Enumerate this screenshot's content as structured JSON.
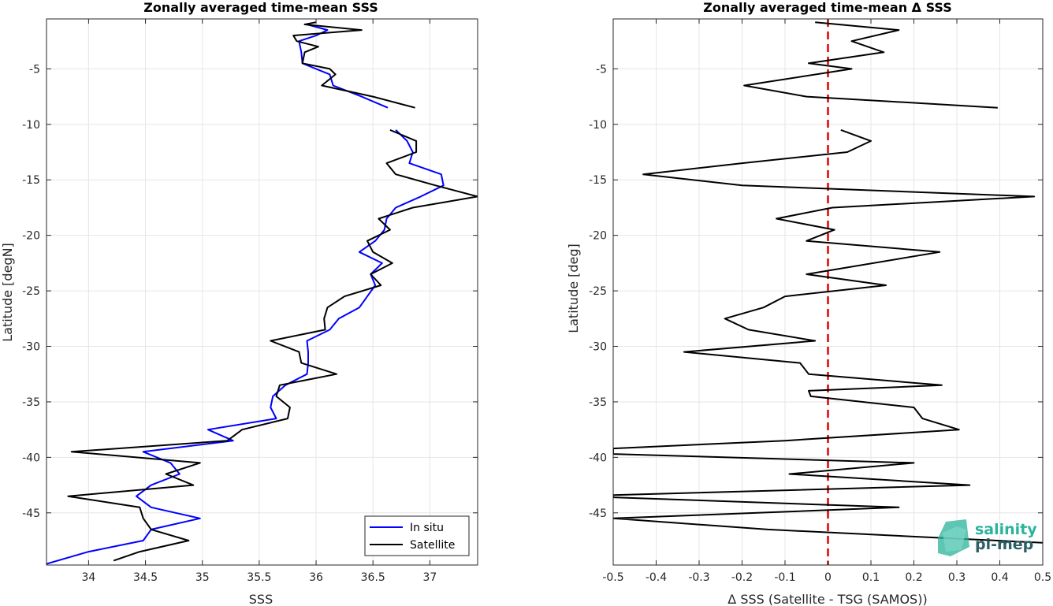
{
  "chart_data": [
    {
      "type": "line",
      "title": "Zonally averaged time-mean SSS",
      "xlabel": "SSS",
      "ylabel": "Latitude [degN]",
      "xlim": [
        33.63,
        37.42
      ],
      "ylim": [
        -49.7,
        -0.5
      ],
      "xticks": [
        34,
        34.5,
        35,
        35.5,
        36,
        36.5,
        37
      ],
      "xtick_labels": [
        "34",
        "34.5",
        "35",
        "35.5",
        "36",
        "36.5",
        "37"
      ],
      "yticks": [
        -45,
        -40,
        -35,
        -30,
        -25,
        -20,
        -15,
        -10,
        -5
      ],
      "ytick_labels": [
        "-45",
        "-40",
        "-35",
        "-30",
        "-25",
        "-20",
        "-15",
        "-10",
        "-5"
      ],
      "grid": true,
      "legend_position": "bottom-right",
      "series": [
        {
          "name": "In situ",
          "color": "#0000ff",
          "segments": [
            [
              [
                35.92,
                -1.0
              ],
              [
                36.1,
                -1.5
              ],
              [
                36.0,
                -2.0
              ],
              [
                35.85,
                -2.5
              ],
              [
                35.87,
                -3.5
              ],
              [
                35.88,
                -4.5
              ],
              [
                36.0,
                -5.0
              ],
              [
                36.12,
                -5.5
              ],
              [
                36.15,
                -6.5
              ],
              [
                36.4,
                -7.5
              ],
              [
                36.63,
                -8.5
              ]
            ],
            [
              [
                36.7,
                -10.5
              ],
              [
                36.8,
                -11.5
              ],
              [
                36.85,
                -12.5
              ],
              [
                36.82,
                -13.5
              ],
              [
                37.1,
                -14.5
              ],
              [
                37.12,
                -15.5
              ],
              [
                36.92,
                -16.5
              ],
              [
                36.7,
                -17.5
              ],
              [
                36.62,
                -18.5
              ],
              [
                36.6,
                -19.5
              ],
              [
                36.52,
                -20.5
              ],
              [
                36.38,
                -21.5
              ],
              [
                36.58,
                -22.5
              ],
              [
                36.48,
                -23.5
              ],
              [
                36.52,
                -24.5
              ],
              [
                36.45,
                -25.5
              ],
              [
                36.38,
                -26.5
              ],
              [
                36.2,
                -27.5
              ],
              [
                36.12,
                -28.5
              ],
              [
                35.92,
                -29.5
              ],
              [
                35.93,
                -30.5
              ],
              [
                35.93,
                -31.5
              ],
              [
                35.92,
                -32.5
              ],
              [
                35.73,
                -33.5
              ],
              [
                35.62,
                -34.5
              ],
              [
                35.6,
                -35.5
              ],
              [
                35.65,
                -36.5
              ],
              [
                35.05,
                -37.5
              ],
              [
                35.27,
                -38.5
              ],
              [
                34.48,
                -39.5
              ],
              [
                34.72,
                -40.5
              ],
              [
                34.8,
                -41.5
              ],
              [
                34.55,
                -42.5
              ],
              [
                34.42,
                -43.5
              ],
              [
                34.55,
                -44.5
              ],
              [
                34.98,
                -45.5
              ],
              [
                34.55,
                -46.5
              ],
              [
                34.48,
                -47.5
              ],
              [
                34.0,
                -48.5
              ],
              [
                33.63,
                -49.6
              ]
            ]
          ]
        },
        {
          "name": "Satellite",
          "color": "#000000",
          "segments": [
            [
              [
                36.0,
                -0.8
              ],
              [
                35.9,
                -1.0
              ],
              [
                36.4,
                -1.5
              ],
              [
                35.8,
                -2.0
              ],
              [
                35.83,
                -2.5
              ],
              [
                36.02,
                -3.0
              ],
              [
                35.9,
                -3.5
              ],
              [
                35.88,
                -4.5
              ],
              [
                36.12,
                -5.0
              ],
              [
                36.17,
                -5.5
              ],
              [
                36.05,
                -6.5
              ],
              [
                36.5,
                -7.5
              ],
              [
                36.87,
                -8.5
              ]
            ],
            [
              [
                36.65,
                -10.5
              ],
              [
                36.88,
                -11.5
              ],
              [
                36.88,
                -12.5
              ],
              [
                36.62,
                -13.5
              ],
              [
                36.7,
                -14.5
              ],
              [
                37.05,
                -15.5
              ],
              [
                37.42,
                -16.5
              ],
              [
                36.85,
                -17.5
              ],
              [
                36.55,
                -18.5
              ],
              [
                36.65,
                -19.5
              ],
              [
                36.45,
                -20.5
              ],
              [
                36.5,
                -21.5
              ],
              [
                36.67,
                -22.5
              ],
              [
                36.48,
                -23.5
              ],
              [
                36.57,
                -24.5
              ],
              [
                36.25,
                -25.5
              ],
              [
                36.1,
                -26.5
              ],
              [
                36.07,
                -27.5
              ],
              [
                36.08,
                -28.5
              ],
              [
                35.6,
                -29.5
              ],
              [
                35.85,
                -30.5
              ],
              [
                35.87,
                -31.5
              ],
              [
                36.18,
                -32.5
              ],
              [
                35.68,
                -33.5
              ],
              [
                35.65,
                -34.5
              ],
              [
                35.77,
                -35.5
              ],
              [
                35.75,
                -36.5
              ],
              [
                35.35,
                -37.5
              ],
              [
                35.22,
                -38.5
              ],
              [
                33.85,
                -39.5
              ],
              [
                34.98,
                -40.5
              ],
              [
                34.68,
                -41.5
              ],
              [
                34.92,
                -42.5
              ],
              [
                33.82,
                -43.5
              ],
              [
                34.45,
                -44.5
              ],
              [
                34.48,
                -45.5
              ],
              [
                34.55,
                -46.5
              ],
              [
                34.88,
                -47.5
              ],
              [
                34.45,
                -48.5
              ],
              [
                34.22,
                -49.3
              ]
            ]
          ]
        }
      ]
    },
    {
      "type": "line",
      "title": "Zonally averaged time-mean Δ SSS",
      "xlabel": "Δ SSS (Satellite - TSG (SAMOS))",
      "ylabel": "Latitude [deg]",
      "xlim": [
        -0.5,
        0.5
      ],
      "ylim": [
        -49.7,
        -0.5
      ],
      "xticks": [
        -0.5,
        -0.4,
        -0.3,
        -0.2,
        -0.1,
        0,
        0.1,
        0.2,
        0.3,
        0.4,
        0.5
      ],
      "xtick_labels": [
        "-0.5",
        "-0.4",
        "-0.3",
        "-0.2",
        "-0.1",
        "0",
        "0.1",
        "0.2",
        "0.3",
        "0.4",
        "0.5"
      ],
      "yticks": [
        -45,
        -40,
        -35,
        -30,
        -25,
        -20,
        -15,
        -10,
        -5
      ],
      "ytick_labels": [
        "-45",
        "-40",
        "-35",
        "-30",
        "-25",
        "-20",
        "-15",
        "-10",
        "-5"
      ],
      "grid": true,
      "reference_line": {
        "x": 0,
        "color": "#e00000",
        "style": "dashed"
      },
      "series": [
        {
          "color": "#000000",
          "segments": [
            [
              [
                -0.03,
                -0.8
              ],
              [
                0.165,
                -1.5
              ],
              [
                0.055,
                -2.5
              ],
              [
                0.13,
                -3.5
              ],
              [
                -0.045,
                -4.5
              ],
              [
                0.055,
                -5.0
              ],
              [
                -0.195,
                -6.5
              ],
              [
                -0.05,
                -7.5
              ],
              [
                0.395,
                -8.5
              ]
            ],
            [
              [
                0.03,
                -10.5
              ],
              [
                0.1,
                -11.5
              ],
              [
                0.045,
                -12.5
              ],
              [
                -0.2,
                -13.5
              ],
              [
                -0.43,
                -14.5
              ],
              [
                -0.2,
                -15.5
              ],
              [
                0.48,
                -16.5
              ],
              [
                0.01,
                -17.5
              ],
              [
                -0.12,
                -18.5
              ],
              [
                0.015,
                -19.5
              ],
              [
                -0.05,
                -20.5
              ],
              [
                0.26,
                -21.5
              ],
              [
                -0.05,
                -23.5
              ],
              [
                0.135,
                -24.5
              ],
              [
                -0.1,
                -25.5
              ],
              [
                -0.15,
                -26.5
              ],
              [
                -0.24,
                -27.5
              ],
              [
                -0.185,
                -28.5
              ],
              [
                -0.03,
                -29.5
              ],
              [
                -0.335,
                -30.5
              ],
              [
                -0.065,
                -31.5
              ],
              [
                -0.045,
                -32.5
              ],
              [
                0.265,
                -33.5
              ],
              [
                -0.045,
                -34.0
              ],
              [
                -0.04,
                -34.5
              ],
              [
                0.2,
                -35.5
              ],
              [
                0.22,
                -36.5
              ],
              [
                0.305,
                -37.5
              ],
              [
                -0.1,
                -38.5
              ],
              [
                -0.5,
                -39.2
              ],
              [
                -0.5,
                -39.7
              ],
              [
                0.2,
                -40.5
              ],
              [
                -0.09,
                -41.5
              ],
              [
                0.33,
                -42.5
              ],
              [
                -0.5,
                -43.4
              ],
              [
                -0.5,
                -43.6
              ],
              [
                0.165,
                -44.5
              ],
              [
                -0.5,
                -45.5
              ],
              [
                -0.14,
                -46.5
              ],
              [
                0.5,
                -47.7
              ]
            ]
          ]
        }
      ]
    }
  ],
  "logo": {
    "line1": "salinity",
    "line2": "pi-mep",
    "color1": "#2bb39b",
    "color2": "#2c5f63"
  }
}
